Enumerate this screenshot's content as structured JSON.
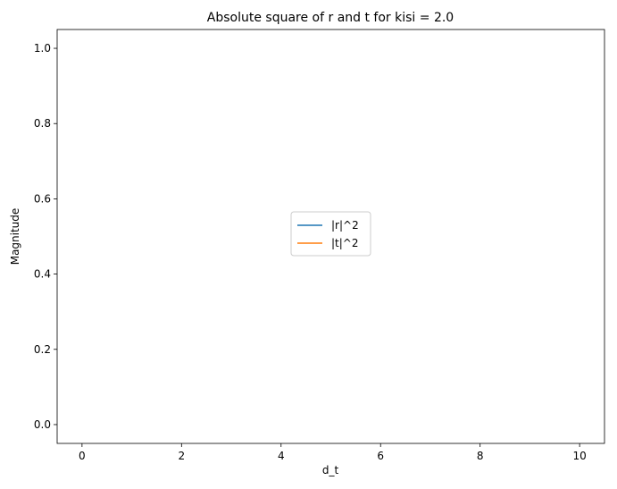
{
  "chart_data": {
    "type": "line",
    "title": "Absolute square of r and t for kisi = 2.0",
    "xlabel": "d_t",
    "ylabel": "Magnitude",
    "xlim": [
      -0.5,
      10.5
    ],
    "ylim": [
      -0.05,
      1.05
    ],
    "xticks": [
      0,
      2,
      4,
      6,
      8,
      10
    ],
    "yticks": [
      0.0,
      0.2,
      0.4,
      0.6,
      0.8,
      1.0
    ],
    "xtick_labels": [
      "0",
      "2",
      "4",
      "6",
      "8",
      "10"
    ],
    "ytick_labels": [
      "0.0",
      "0.2",
      "0.4",
      "0.6",
      "0.8",
      "1.0"
    ],
    "grid": false,
    "legend_position": "center",
    "colors": {
      "r": "#1f77b4",
      "t": "#ff7f0e"
    },
    "series": [
      {
        "name": "|r|^2",
        "color": "#1f77b4",
        "kind": "reflection"
      },
      {
        "name": "|t|^2",
        "color": "#ff7f0e",
        "kind": "transmission"
      }
    ],
    "params": {
      "period": 3.1,
      "band_start": 1.5,
      "band_end": 3.25,
      "n_osc": 5,
      "t_min": 0.33,
      "t_edge": 0.025
    }
  }
}
